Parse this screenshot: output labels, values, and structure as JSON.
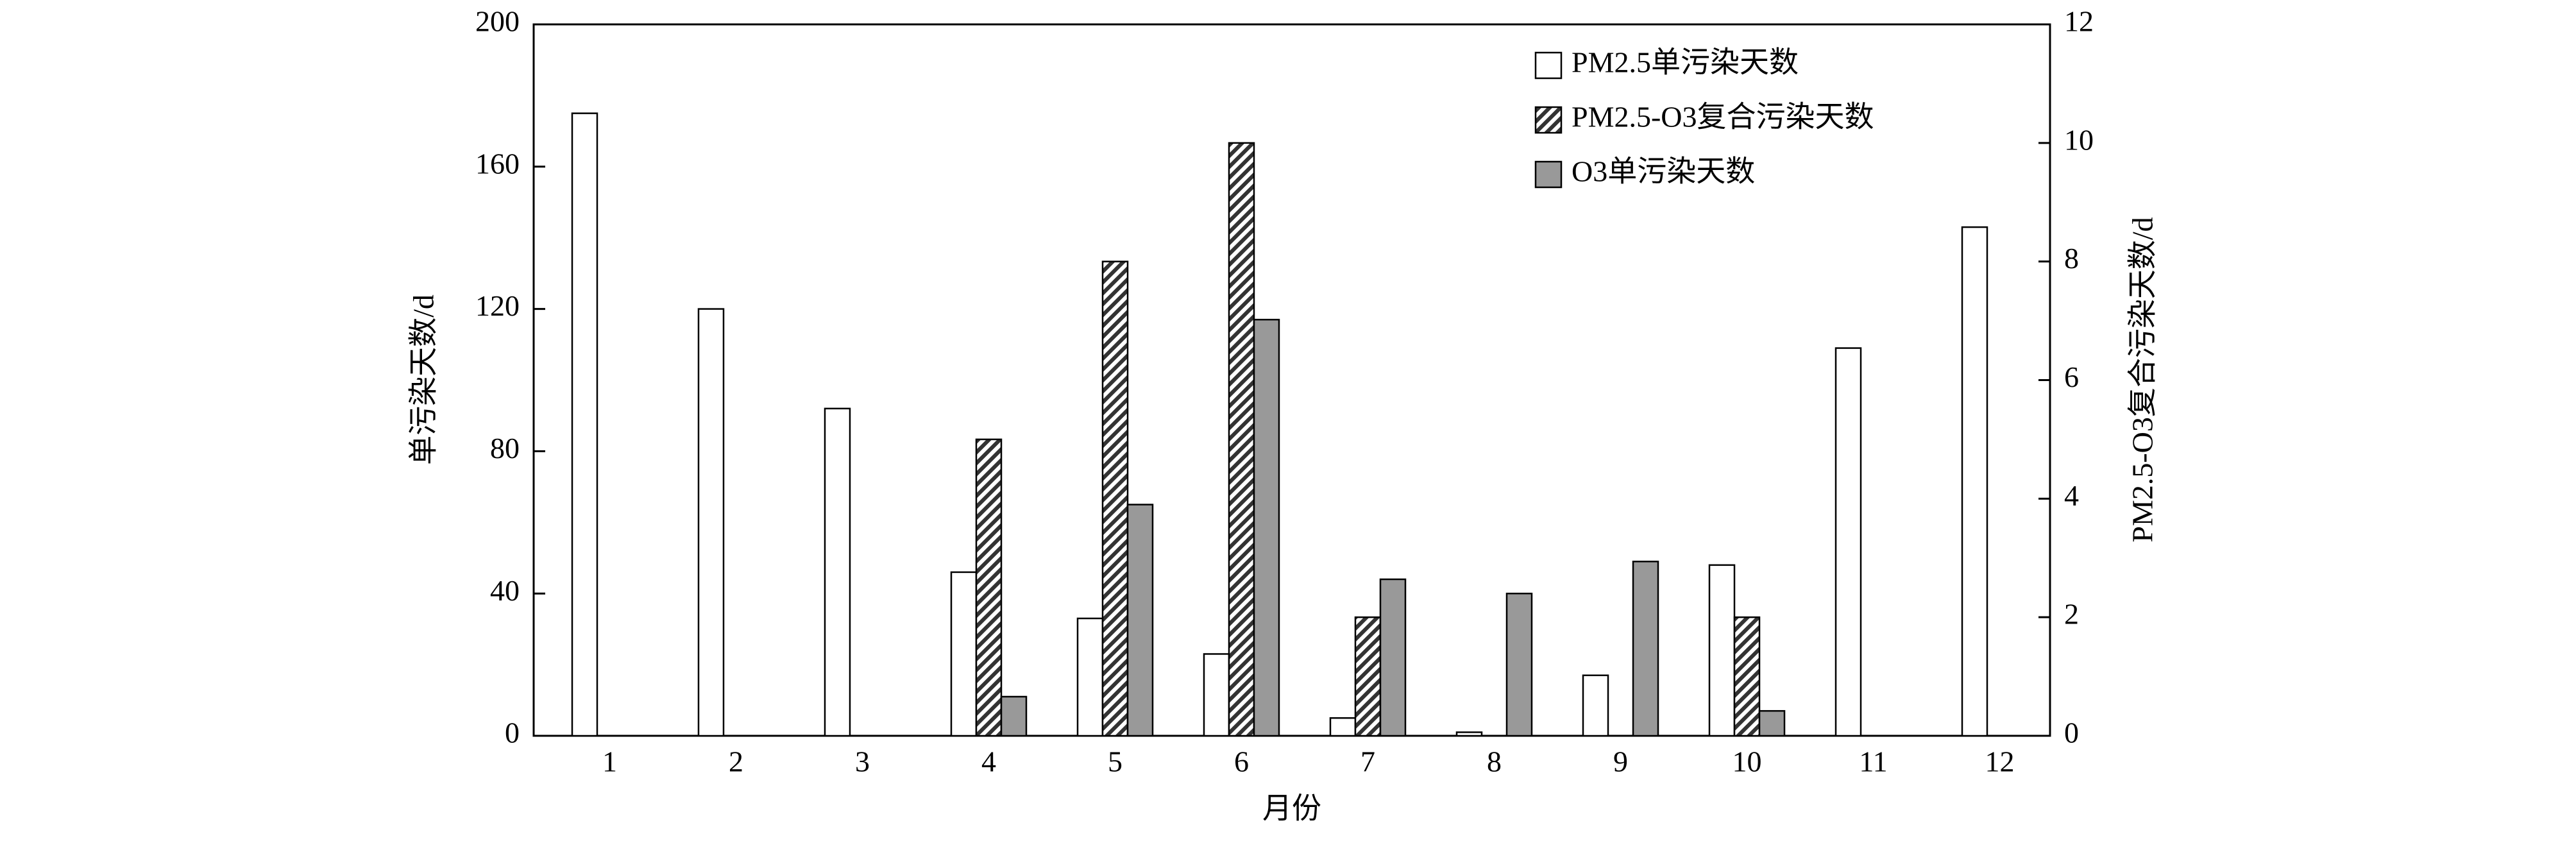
{
  "chart_data": {
    "type": "bar",
    "x_label": "月份",
    "y_label": "单污染天数/d",
    "y2_label": "PM2.5-O3复合污染天数/d",
    "categories": [
      "1",
      "2",
      "3",
      "4",
      "5",
      "6",
      "7",
      "8",
      "9",
      "10",
      "11",
      "12"
    ],
    "series": [
      {
        "name": "PM2.5单污染天数",
        "color": "#ffffff",
        "values": [
          175,
          120,
          92,
          46,
          33,
          23,
          5,
          1,
          17,
          48,
          109,
          143
        ]
      },
      {
        "name": "PM2.5-O3复合污染天数",
        "color": "hatch",
        "axis": "y2",
        "values": [
          0,
          0,
          0,
          5,
          8,
          10,
          2,
          0,
          0,
          2,
          0,
          0
        ]
      },
      {
        "name": "O3单污染天数",
        "color": "#999999",
        "values": [
          0,
          0,
          0,
          11,
          65,
          117,
          44,
          40,
          49,
          7,
          0,
          0
        ]
      }
    ],
    "ylim": [
      0,
      200
    ],
    "yticks": [
      0,
      40,
      80,
      120,
      160,
      200
    ],
    "y2lim": [
      0,
      12
    ],
    "y2ticks": [
      0,
      2,
      4,
      6,
      8,
      10,
      12
    ],
    "legend": "upper-right"
  }
}
